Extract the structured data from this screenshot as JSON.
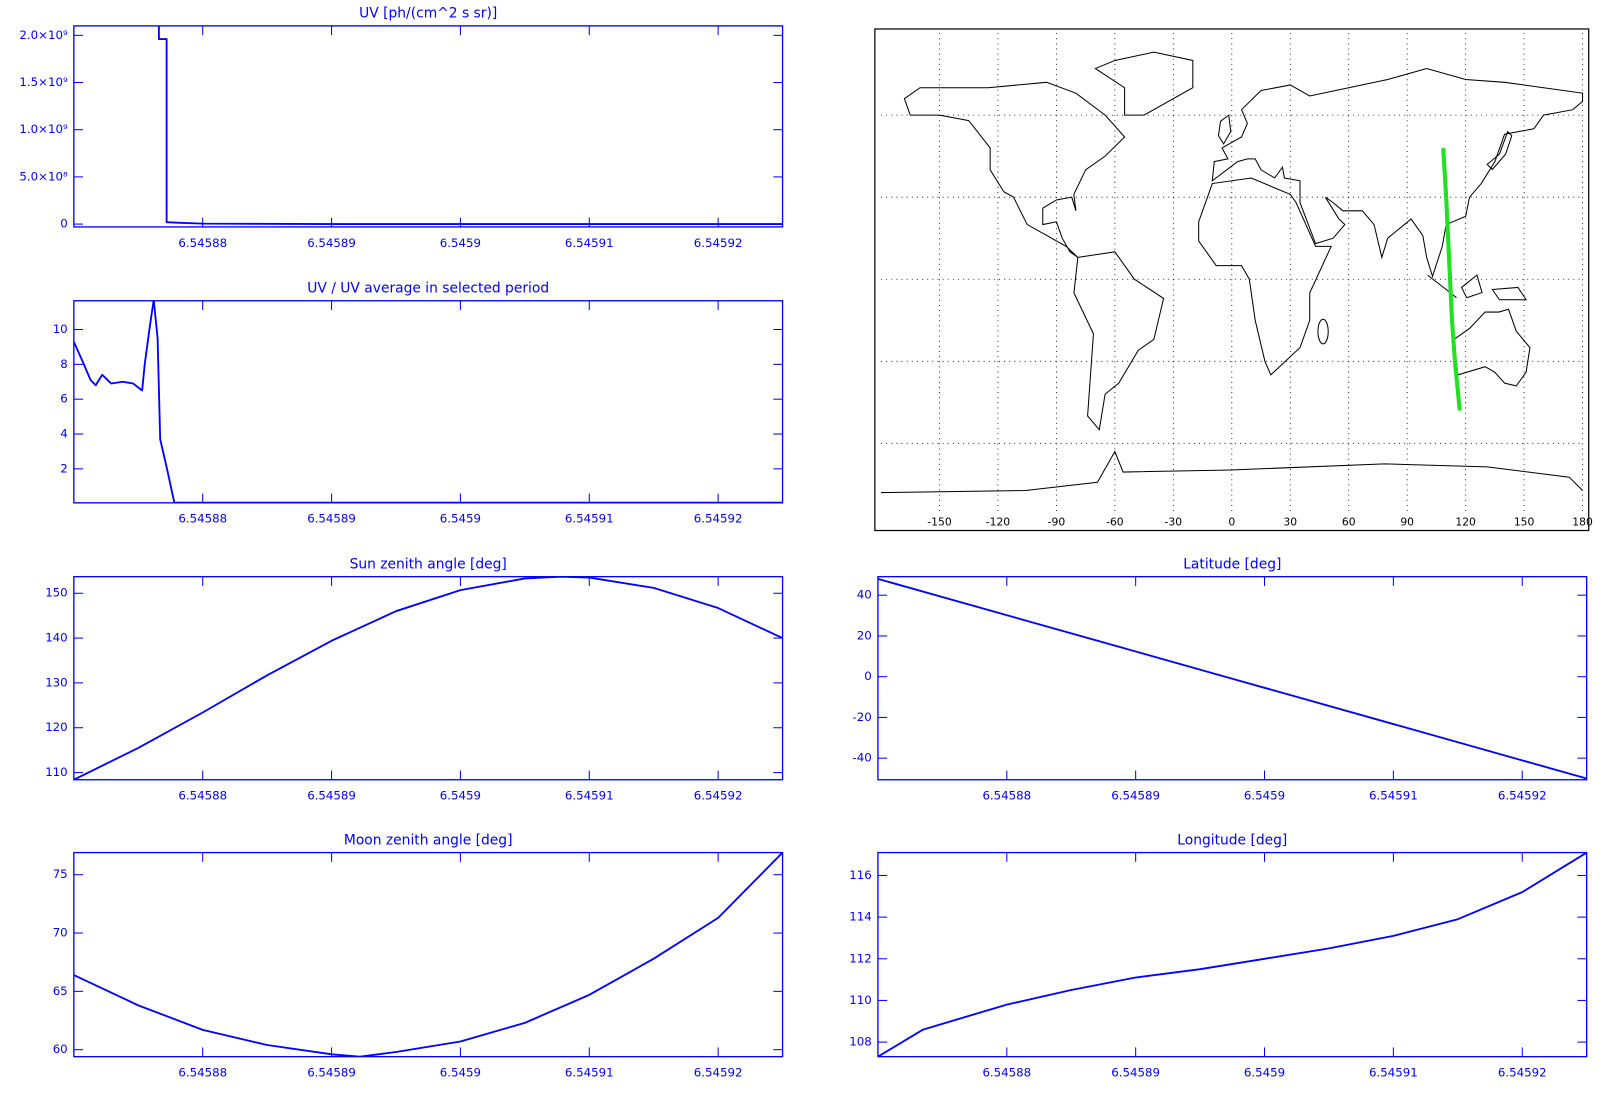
{
  "chart_data": [
    {
      "type": "line",
      "title": "UV [ph/(cm^2 s sr)]",
      "color": "#0000ff",
      "x": [
        6.5458766,
        6.5458766,
        6.5458772,
        6.5458772,
        6.545878,
        6.54588,
        6.54589,
        6.54592,
        6.545925
      ],
      "values": [
        2100000000,
        1960000000,
        1960000000,
        20000000,
        15000000,
        5000000,
        0,
        0,
        0
      ],
      "xlim": [
        6.54587,
        6.545925
      ],
      "xticks": [
        6.54588,
        6.54589,
        6.5459,
        6.54591,
        6.54592
      ],
      "ylim": [
        -30000000,
        2100000000
      ],
      "yticks": [
        0,
        {
          "value": 500000000,
          "label": "5.0×10⁸"
        },
        {
          "value": 1000000000,
          "label": "1.0×10⁹"
        },
        {
          "value": 1500000000,
          "label": "1.5×10⁹"
        },
        {
          "value": 2000000000,
          "label": "2.0×10⁹"
        }
      ]
    },
    {
      "type": "line",
      "title": "UV / UV average in selected period",
      "color": "#0000ff",
      "x": [
        6.54587,
        6.5458706,
        6.5458713,
        6.5458717,
        6.5458722,
        6.5458729,
        6.5458738,
        6.5458746,
        6.5458753,
        6.5458755,
        6.5458759,
        6.5458762,
        6.5458765,
        6.5458767,
        6.5458772,
        6.5458778,
        6.545925
      ],
      "values": [
        9.3,
        8.3,
        7.1,
        6.8,
        7.4,
        6.9,
        7.0,
        6.9,
        6.5,
        8.0,
        10.2,
        11.7,
        9.5,
        3.7,
        2.1,
        0.06,
        0.06
      ],
      "xlim": [
        6.54587,
        6.545925
      ],
      "xticks": [
        6.54588,
        6.54589,
        6.5459,
        6.54591,
        6.54592
      ],
      "ylim": [
        0.05,
        11.65
      ],
      "yticks": [
        2,
        4,
        6,
        8,
        10
      ]
    },
    {
      "type": "line",
      "title": "Sun zenith angle [deg]",
      "color": "#0000ff",
      "x": [
        6.54587,
        6.545875,
        6.54588,
        6.545885,
        6.54589,
        6.545895,
        6.5459,
        6.545905,
        6.5459078,
        6.54591,
        6.545915,
        6.54592,
        6.545925
      ],
      "values": [
        108.4,
        115.5,
        123.4,
        131.7,
        139.4,
        146.0,
        150.7,
        153.3,
        153.7,
        153.5,
        151.2,
        146.7,
        140.0
      ],
      "xlim": [
        6.54587,
        6.545925
      ],
      "xticks": [
        6.54588,
        6.54589,
        6.5459,
        6.54591,
        6.54592
      ],
      "ylim": [
        108.4,
        153.7
      ],
      "yticks": [
        110,
        120,
        130,
        140,
        150
      ]
    },
    {
      "type": "line",
      "title": "Latitude [deg]",
      "color": "#0000ff",
      "x": [
        6.54587,
        6.5458975,
        6.545925
      ],
      "values": [
        48,
        -1,
        -50
      ],
      "xlim": [
        6.54587,
        6.545925
      ],
      "xticks": [
        6.54588,
        6.54589,
        6.5459,
        6.54591,
        6.54592
      ],
      "ylim": [
        -50.6,
        49.1
      ],
      "yticks": [
        -40,
        -20,
        0,
        20,
        40
      ]
    },
    {
      "type": "line",
      "title": "Moon zenith angle [deg]",
      "color": "#0000ff",
      "x": [
        6.54587,
        6.545875,
        6.54588,
        6.545885,
        6.54589,
        6.5458922,
        6.545895,
        6.5459,
        6.545905,
        6.54591,
        6.545915,
        6.54592,
        6.545925
      ],
      "values": [
        66.4,
        63.8,
        61.7,
        60.4,
        59.6,
        59.4,
        59.8,
        60.7,
        62.3,
        64.7,
        67.8,
        71.3,
        76.9
      ],
      "xlim": [
        6.54587,
        6.545925
      ],
      "xticks": [
        6.54588,
        6.54589,
        6.5459,
        6.54591,
        6.54592
      ],
      "ylim": [
        59.4,
        76.9
      ],
      "yticks": [
        60,
        65,
        70,
        75
      ]
    },
    {
      "type": "line",
      "title": "Longitude [deg]",
      "color": "#0000ff",
      "x": [
        6.54587,
        6.5458735,
        6.54588,
        6.545885,
        6.54589,
        6.545895,
        6.5459,
        6.545905,
        6.54591,
        6.545915,
        6.54592,
        6.545925
      ],
      "values": [
        107.3,
        108.6,
        109.8,
        110.5,
        111.1,
        111.5,
        112.0,
        112.5,
        113.1,
        113.9,
        115.2,
        117.1
      ],
      "xlim": [
        6.54587,
        6.545925
      ],
      "xticks": [
        6.54588,
        6.54589,
        6.5459,
        6.54591,
        6.54592
      ],
      "ylim": [
        107.3,
        117.1
      ],
      "yticks": [
        108,
        110,
        112,
        114,
        116
      ]
    },
    {
      "type": "map",
      "color": "#22e022",
      "grid": true,
      "x": [
        108.5,
        110,
        111,
        112,
        113,
        114.5,
        117
      ],
      "values": [
        48,
        30,
        15,
        0,
        -15,
        -30,
        -48
      ],
      "xlim": [
        -180,
        180
      ],
      "xticks": [
        -150,
        -120,
        -90,
        -60,
        -30,
        0,
        30,
        60,
        90,
        120,
        150,
        180
      ],
      "ylim": [
        -90,
        90
      ]
    }
  ]
}
